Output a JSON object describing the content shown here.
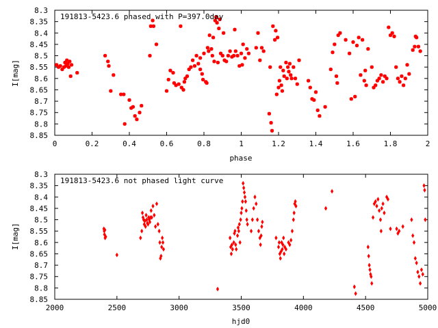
{
  "colors": {
    "points": "#ff0000",
    "frame": "#000000"
  },
  "chart_data": [
    {
      "type": "scatter",
      "title": "191813-5423.6 phased with P=397.0day",
      "xlabel": "phase",
      "ylabel": "I[mag]",
      "xlim": [
        0,
        2
      ],
      "ylim": [
        8.3,
        8.85
      ],
      "y_inverted": true,
      "xticks": [
        0,
        0.2,
        0.4,
        0.6,
        0.8,
        1,
        1.2,
        1.4,
        1.6,
        1.8,
        2
      ],
      "xtick_labels": [
        "0",
        "0.2",
        "0.4",
        "0.6",
        "0.8",
        "1",
        "1.2",
        "1.4",
        "1.6",
        "1.8",
        "2"
      ],
      "yticks": [
        8.3,
        8.35,
        8.4,
        8.45,
        8.5,
        8.55,
        8.6,
        8.65,
        8.7,
        8.75,
        8.8,
        8.85
      ],
      "ytick_labels": [
        "8.3",
        "8.35",
        "8.4",
        "8.45",
        "8.5",
        "8.55",
        "8.6",
        "8.65",
        "8.7",
        "8.75",
        "8.8",
        "8.85"
      ],
      "grid": false,
      "marker": "star",
      "points": [
        [
          0.01,
          8.54
        ],
        [
          0.02,
          8.55
        ],
        [
          0.03,
          8.545
        ],
        [
          0.04,
          8.56
        ],
        [
          0.05,
          8.55
        ],
        [
          0.055,
          8.53
        ],
        [
          0.06,
          8.545
        ],
        [
          0.065,
          8.52
        ],
        [
          0.07,
          8.535
        ],
        [
          0.075,
          8.55
        ],
        [
          0.08,
          8.525
        ],
        [
          0.085,
          8.59
        ],
        [
          0.09,
          8.54
        ],
        [
          0.12,
          8.575
        ],
        [
          0.27,
          8.5
        ],
        [
          0.285,
          8.525
        ],
        [
          0.29,
          8.545
        ],
        [
          0.3,
          8.655
        ],
        [
          0.315,
          8.585
        ],
        [
          0.355,
          8.67
        ],
        [
          0.37,
          8.67
        ],
        [
          0.375,
          8.8
        ],
        [
          0.4,
          8.695
        ],
        [
          0.41,
          8.73
        ],
        [
          0.42,
          8.725
        ],
        [
          0.43,
          8.765
        ],
        [
          0.44,
          8.78
        ],
        [
          0.455,
          8.75
        ],
        [
          0.465,
          8.72
        ],
        [
          0.51,
          8.5
        ],
        [
          0.515,
          8.37
        ],
        [
          0.525,
          8.345
        ],
        [
          0.53,
          8.37
        ],
        [
          0.545,
          8.45
        ],
        [
          0.6,
          8.655
        ],
        [
          0.61,
          8.605
        ],
        [
          0.62,
          8.565
        ],
        [
          0.635,
          8.575
        ],
        [
          0.64,
          8.62
        ],
        [
          0.65,
          8.63
        ],
        [
          0.665,
          8.625
        ],
        [
          0.675,
          8.37
        ],
        [
          0.68,
          8.64
        ],
        [
          0.69,
          8.65
        ],
        [
          0.695,
          8.615
        ],
        [
          0.7,
          8.6
        ],
        [
          0.71,
          8.59
        ],
        [
          0.72,
          8.56
        ],
        [
          0.73,
          8.55
        ],
        [
          0.74,
          8.52
        ],
        [
          0.75,
          8.545
        ],
        [
          0.76,
          8.5
        ],
        [
          0.77,
          8.535
        ],
        [
          0.78,
          8.51
        ],
        [
          0.78,
          8.56
        ],
        [
          0.79,
          8.58
        ],
        [
          0.795,
          8.605
        ],
        [
          0.8,
          8.49
        ],
        [
          0.81,
          8.615
        ],
        [
          0.815,
          8.62
        ],
        [
          0.82,
          8.465
        ],
        [
          0.825,
          8.48
        ],
        [
          0.83,
          8.41
        ],
        [
          0.84,
          8.47
        ],
        [
          0.845,
          8.5
        ],
        [
          0.85,
          8.42
        ],
        [
          0.855,
          8.525
        ],
        [
          0.86,
          8.345
        ],
        [
          0.865,
          8.33
        ],
        [
          0.87,
          8.355
        ],
        [
          0.875,
          8.53
        ],
        [
          0.88,
          8.38
        ],
        [
          0.885,
          8.34
        ],
        [
          0.89,
          8.49
        ],
        [
          0.9,
          8.5
        ],
        [
          0.905,
          8.4
        ],
        [
          0.91,
          8.52
        ],
        [
          0.92,
          8.525
        ],
        [
          0.93,
          8.5
        ],
        [
          0.94,
          8.48
        ],
        [
          0.95,
          8.505
        ],
        [
          0.96,
          8.5
        ],
        [
          0.965,
          8.385
        ],
        [
          0.97,
          8.48
        ],
        [
          0.98,
          8.5
        ],
        [
          0.99,
          8.545
        ],
        [
          1.0,
          8.49
        ],
        [
          1.005,
          8.54
        ],
        [
          1.01,
          8.45
        ],
        [
          1.02,
          8.51
        ],
        [
          1.03,
          8.47
        ],
        [
          1.04,
          8.49
        ],
        [
          1.08,
          8.465
        ],
        [
          1.09,
          8.4
        ],
        [
          1.1,
          8.52
        ],
        [
          1.11,
          8.465
        ],
        [
          1.12,
          8.48
        ],
        [
          1.15,
          8.755
        ],
        [
          1.155,
          8.55
        ],
        [
          1.16,
          8.795
        ],
        [
          1.165,
          8.83
        ],
        [
          1.17,
          8.37
        ],
        [
          1.18,
          8.43
        ],
        [
          1.185,
          8.39
        ],
        [
          1.19,
          8.67
        ],
        [
          1.195,
          8.42
        ],
        [
          1.2,
          8.64
        ],
        [
          1.205,
          8.61
        ],
        [
          1.21,
          8.55
        ],
        [
          1.215,
          8.63
        ],
        [
          1.22,
          8.655
        ],
        [
          1.225,
          8.565
        ],
        [
          1.23,
          8.59
        ],
        [
          1.24,
          8.53
        ],
        [
          1.245,
          8.6
        ],
        [
          1.25,
          8.55
        ],
        [
          1.255,
          8.57
        ],
        [
          1.26,
          8.535
        ],
        [
          1.265,
          8.585
        ],
        [
          1.27,
          8.6
        ],
        [
          1.28,
          8.55
        ],
        [
          1.29,
          8.6
        ],
        [
          1.3,
          8.625
        ],
        [
          1.31,
          8.52
        ],
        [
          1.36,
          8.61
        ],
        [
          1.37,
          8.64
        ],
        [
          1.38,
          8.69
        ],
        [
          1.39,
          8.695
        ],
        [
          1.4,
          8.66
        ],
        [
          1.41,
          8.74
        ],
        [
          1.42,
          8.765
        ],
        [
          1.45,
          8.725
        ],
        [
          1.48,
          8.56
        ],
        [
          1.49,
          8.485
        ],
        [
          1.5,
          8.45
        ],
        [
          1.51,
          8.59
        ],
        [
          1.515,
          8.62
        ],
        [
          1.52,
          8.41
        ],
        [
          1.53,
          8.4
        ],
        [
          1.56,
          8.43
        ],
        [
          1.58,
          8.49
        ],
        [
          1.59,
          8.69
        ],
        [
          1.6,
          8.44
        ],
        [
          1.61,
          8.68
        ],
        [
          1.62,
          8.455
        ],
        [
          1.63,
          8.42
        ],
        [
          1.64,
          8.585
        ],
        [
          1.65,
          8.43
        ],
        [
          1.66,
          8.61
        ],
        [
          1.665,
          8.565
        ],
        [
          1.67,
          8.63
        ],
        [
          1.68,
          8.47
        ],
        [
          1.7,
          8.55
        ],
        [
          1.71,
          8.64
        ],
        [
          1.72,
          8.63
        ],
        [
          1.73,
          8.61
        ],
        [
          1.74,
          8.6
        ],
        [
          1.75,
          8.585
        ],
        [
          1.76,
          8.615
        ],
        [
          1.77,
          8.59
        ],
        [
          1.78,
          8.6
        ],
        [
          1.79,
          8.375
        ],
        [
          1.8,
          8.41
        ],
        [
          1.81,
          8.4
        ],
        [
          1.82,
          8.415
        ],
        [
          1.83,
          8.55
        ],
        [
          1.84,
          8.6
        ],
        [
          1.85,
          8.615
        ],
        [
          1.86,
          8.59
        ],
        [
          1.87,
          8.63
        ],
        [
          1.88,
          8.6
        ],
        [
          1.89,
          8.54
        ],
        [
          1.9,
          8.58
        ],
        [
          1.92,
          8.475
        ],
        [
          1.93,
          8.46
        ],
        [
          1.935,
          8.415
        ],
        [
          1.94,
          8.42
        ],
        [
          1.95,
          8.46
        ],
        [
          1.96,
          8.48
        ]
      ]
    },
    {
      "type": "scatter",
      "title": "191813-5423.6 not phased light curve",
      "xlabel": "hjd0",
      "ylabel": "I[mag]",
      "xlim": [
        2000,
        5000
      ],
      "ylim": [
        8.3,
        8.85
      ],
      "y_inverted": true,
      "xticks": [
        2000,
        2500,
        3000,
        3500,
        4000,
        4500,
        5000
      ],
      "xtick_labels": [
        "2000",
        "2500",
        "3000",
        "3500",
        "4000",
        "4500",
        "5000"
      ],
      "yticks": [
        8.3,
        8.35,
        8.4,
        8.45,
        8.5,
        8.55,
        8.6,
        8.65,
        8.7,
        8.75,
        8.8,
        8.85
      ],
      "ytick_labels": [
        "8.3",
        "8.35",
        "8.4",
        "8.45",
        "8.5",
        "8.55",
        "8.6",
        "8.65",
        "8.7",
        "8.75",
        "8.8",
        "8.85"
      ],
      "grid": false,
      "marker": "diamond",
      "points": [
        [
          2395,
          8.54
        ],
        [
          2398,
          8.55
        ],
        [
          2400,
          8.565
        ],
        [
          2403,
          8.545
        ],
        [
          2405,
          8.58
        ],
        [
          2410,
          8.575
        ],
        [
          2500,
          8.655
        ],
        [
          2690,
          8.58
        ],
        [
          2700,
          8.55
        ],
        [
          2705,
          8.47
        ],
        [
          2710,
          8.49
        ],
        [
          2715,
          8.5
        ],
        [
          2720,
          8.52
        ],
        [
          2725,
          8.505
        ],
        [
          2730,
          8.53
        ],
        [
          2735,
          8.48
        ],
        [
          2740,
          8.5
        ],
        [
          2745,
          8.515
        ],
        [
          2750,
          8.52
        ],
        [
          2755,
          8.49
        ],
        [
          2760,
          8.5
        ],
        [
          2765,
          8.51
        ],
        [
          2770,
          8.49
        ],
        [
          2775,
          8.46
        ],
        [
          2780,
          8.49
        ],
        [
          2790,
          8.44
        ],
        [
          2800,
          8.48
        ],
        [
          2810,
          8.53
        ],
        [
          2820,
          8.43
        ],
        [
          2830,
          8.52
        ],
        [
          2840,
          8.55
        ],
        [
          2845,
          8.6
        ],
        [
          2850,
          8.67
        ],
        [
          2855,
          8.66
        ],
        [
          2860,
          8.62
        ],
        [
          2865,
          8.58
        ],
        [
          2870,
          8.6
        ],
        [
          2875,
          8.63
        ],
        [
          3310,
          8.805
        ],
        [
          3410,
          8.58
        ],
        [
          3415,
          8.62
        ],
        [
          3420,
          8.65
        ],
        [
          3425,
          8.61
        ],
        [
          3430,
          8.63
        ],
        [
          3440,
          8.6
        ],
        [
          3445,
          8.56
        ],
        [
          3450,
          8.55
        ],
        [
          3455,
          8.61
        ],
        [
          3460,
          8.63
        ],
        [
          3470,
          8.57
        ],
        [
          3475,
          8.535
        ],
        [
          3480,
          8.55
        ],
        [
          3485,
          8.52
        ],
        [
          3490,
          8.6
        ],
        [
          3495,
          8.5
        ],
        [
          3500,
          8.47
        ],
        [
          3505,
          8.45
        ],
        [
          3510,
          8.42
        ],
        [
          3515,
          8.34
        ],
        [
          3520,
          8.36
        ],
        [
          3525,
          8.38
        ],
        [
          3530,
          8.4
        ],
        [
          3535,
          8.42
        ],
        [
          3540,
          8.46
        ],
        [
          3545,
          8.5
        ],
        [
          3550,
          8.52
        ],
        [
          3580,
          8.55
        ],
        [
          3590,
          8.5
        ],
        [
          3600,
          8.45
        ],
        [
          3610,
          8.4
        ],
        [
          3620,
          8.43
        ],
        [
          3630,
          8.5
        ],
        [
          3640,
          8.55
        ],
        [
          3650,
          8.58
        ],
        [
          3655,
          8.61
        ],
        [
          3660,
          8.57
        ],
        [
          3665,
          8.53
        ],
        [
          3670,
          8.51
        ],
        [
          3780,
          8.58
        ],
        [
          3800,
          8.62
        ],
        [
          3805,
          8.6
        ],
        [
          3810,
          8.65
        ],
        [
          3815,
          8.67
        ],
        [
          3820,
          8.64
        ],
        [
          3825,
          8.6
        ],
        [
          3830,
          8.63
        ],
        [
          3835,
          8.61
        ],
        [
          3840,
          8.58
        ],
        [
          3845,
          8.65
        ],
        [
          3850,
          8.62
        ],
        [
          3860,
          8.63
        ],
        [
          3880,
          8.6
        ],
        [
          3890,
          8.61
        ],
        [
          3900,
          8.59
        ],
        [
          3910,
          8.55
        ],
        [
          3920,
          8.5
        ],
        [
          3925,
          8.47
        ],
        [
          3930,
          8.43
        ],
        [
          3935,
          8.42
        ],
        [
          3940,
          8.44
        ],
        [
          4180,
          8.45
        ],
        [
          4230,
          8.375
        ],
        [
          4410,
          8.795
        ],
        [
          4420,
          8.825
        ],
        [
          4520,
          8.62
        ],
        [
          4525,
          8.66
        ],
        [
          4530,
          8.7
        ],
        [
          4535,
          8.72
        ],
        [
          4540,
          8.74
        ],
        [
          4545,
          8.75
        ],
        [
          4550,
          8.78
        ],
        [
          4560,
          8.49
        ],
        [
          4570,
          8.43
        ],
        [
          4580,
          8.42
        ],
        [
          4590,
          8.44
        ],
        [
          4600,
          8.41
        ],
        [
          4610,
          8.46
        ],
        [
          4620,
          8.5
        ],
        [
          4625,
          8.55
        ],
        [
          4630,
          8.45
        ],
        [
          4640,
          8.43
        ],
        [
          4650,
          8.47
        ],
        [
          4670,
          8.4
        ],
        [
          4680,
          8.41
        ],
        [
          4700,
          8.54
        ],
        [
          4750,
          8.54
        ],
        [
          4760,
          8.56
        ],
        [
          4770,
          8.55
        ],
        [
          4800,
          8.53
        ],
        [
          4870,
          8.5
        ],
        [
          4880,
          8.57
        ],
        [
          4890,
          8.6
        ],
        [
          4900,
          8.67
        ],
        [
          4910,
          8.69
        ],
        [
          4920,
          8.73
        ],
        [
          4930,
          8.75
        ],
        [
          4940,
          8.78
        ],
        [
          4950,
          8.72
        ],
        [
          4960,
          8.74
        ],
        [
          4970,
          8.35
        ],
        [
          4975,
          8.37
        ],
        [
          4980,
          8.5
        ]
      ]
    }
  ]
}
